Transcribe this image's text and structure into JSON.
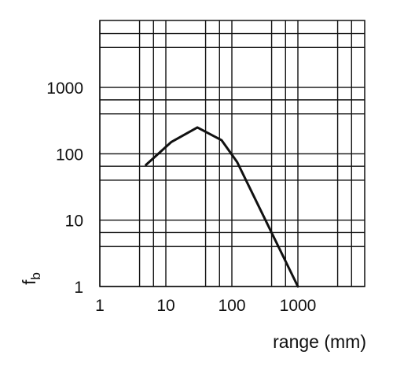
{
  "chart_data": {
    "type": "line",
    "title": "",
    "xlabel": "range (mm)",
    "ylabel": "f",
    "ylabel_subscript": "b",
    "x_scale": "log",
    "y_scale": "log",
    "xlim": [
      1,
      8000
    ],
    "ylim": [
      1,
      10000
    ],
    "grid": true,
    "x_ticks": [
      {
        "value": 1,
        "label": "1"
      },
      {
        "value": 10,
        "label": "10"
      },
      {
        "value": 100,
        "label": "100"
      },
      {
        "value": 1000,
        "label": "1000"
      }
    ],
    "y_ticks": [
      {
        "value": 1,
        "label": "1"
      },
      {
        "value": 10,
        "label": "10"
      },
      {
        "value": 100,
        "label": "100"
      },
      {
        "value": 1000,
        "label": "1000"
      }
    ],
    "grid_x": [
      1,
      4,
      6.5,
      10,
      40,
      65,
      100,
      400,
      650,
      1000,
      4000,
      6500
    ],
    "grid_y": [
      1,
      4,
      6.5,
      10,
      40,
      65,
      100,
      400,
      650,
      1000,
      4000,
      6500
    ],
    "series": [
      {
        "x": [
          5,
          12,
          30,
          70,
          120,
          1000
        ],
        "y": [
          68,
          150,
          250,
          160,
          75,
          1
        ]
      }
    ],
    "colors": {
      "line": "#111111",
      "grid": "#111111",
      "background": "#ffffff"
    }
  }
}
